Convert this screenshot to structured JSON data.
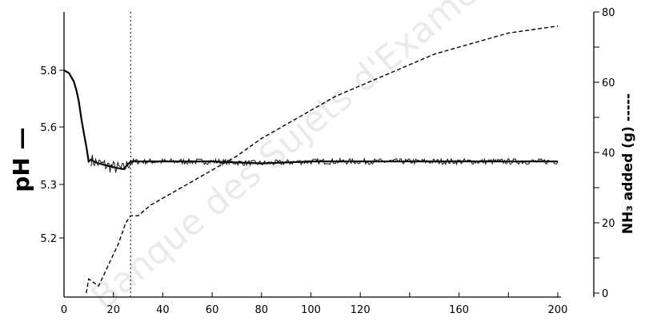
{
  "chart_data": {
    "type": "line",
    "title": "",
    "xlabel": "",
    "xlim": [
      0,
      200
    ],
    "x_ticks": [
      0,
      20,
      40,
      60,
      80,
      100,
      120,
      140,
      160,
      180,
      200
    ],
    "x_tick_labels": [
      "0",
      "20",
      "40",
      "60",
      "80",
      "100",
      "120",
      "",
      "160",
      "",
      "200"
    ],
    "y_left": {
      "label": "pH —",
      "tick_values": [
        5.8,
        5.6,
        5.3,
        5.2
      ],
      "tick_labels": [
        "5.8",
        "5.6",
        "5.3",
        "5.2"
      ]
    },
    "y_right": {
      "label": "NH₃ added (g) -----",
      "lim": [
        0,
        80
      ],
      "ticks": [
        0,
        10,
        20,
        30,
        40,
        50,
        60,
        70,
        80
      ],
      "tick_labels": [
        "0",
        "",
        "20",
        "",
        "40",
        "",
        "60",
        "",
        "80"
      ]
    },
    "vertical_line": {
      "x": 27,
      "style": "dotted"
    },
    "grid": false,
    "series": [
      {
        "axis": "left",
        "style": "solid",
        "x": [
          0,
          2,
          4,
          5,
          6,
          7,
          8,
          9,
          10,
          11,
          12,
          14,
          17,
          20,
          24,
          27,
          30,
          40,
          60,
          80,
          100,
          120,
          140,
          160,
          180,
          200
        ],
        "y": [
          5.8,
          5.79,
          5.76,
          5.73,
          5.69,
          5.63,
          5.57,
          5.5,
          5.42,
          5.43,
          5.42,
          5.41,
          5.4,
          5.39,
          5.38,
          5.42,
          5.42,
          5.42,
          5.42,
          5.41,
          5.42,
          5.42,
          5.42,
          5.42,
          5.42,
          5.42
        ]
      },
      {
        "axis": "right",
        "style": "dashed",
        "x": [
          9,
          10,
          14,
          18,
          22,
          25,
          27,
          30,
          35,
          40,
          50,
          60,
          70,
          80,
          90,
          100,
          110,
          120,
          130,
          140,
          150,
          160,
          170,
          180,
          190,
          200
        ],
        "y": [
          0,
          4,
          2,
          8,
          14,
          20,
          22,
          22,
          25,
          27,
          31,
          35,
          39,
          44,
          48,
          52,
          56,
          59,
          62,
          65,
          68,
          70,
          72,
          74,
          75,
          76
        ]
      }
    ]
  },
  "watermark": "Banque des Sujets d'Examen"
}
